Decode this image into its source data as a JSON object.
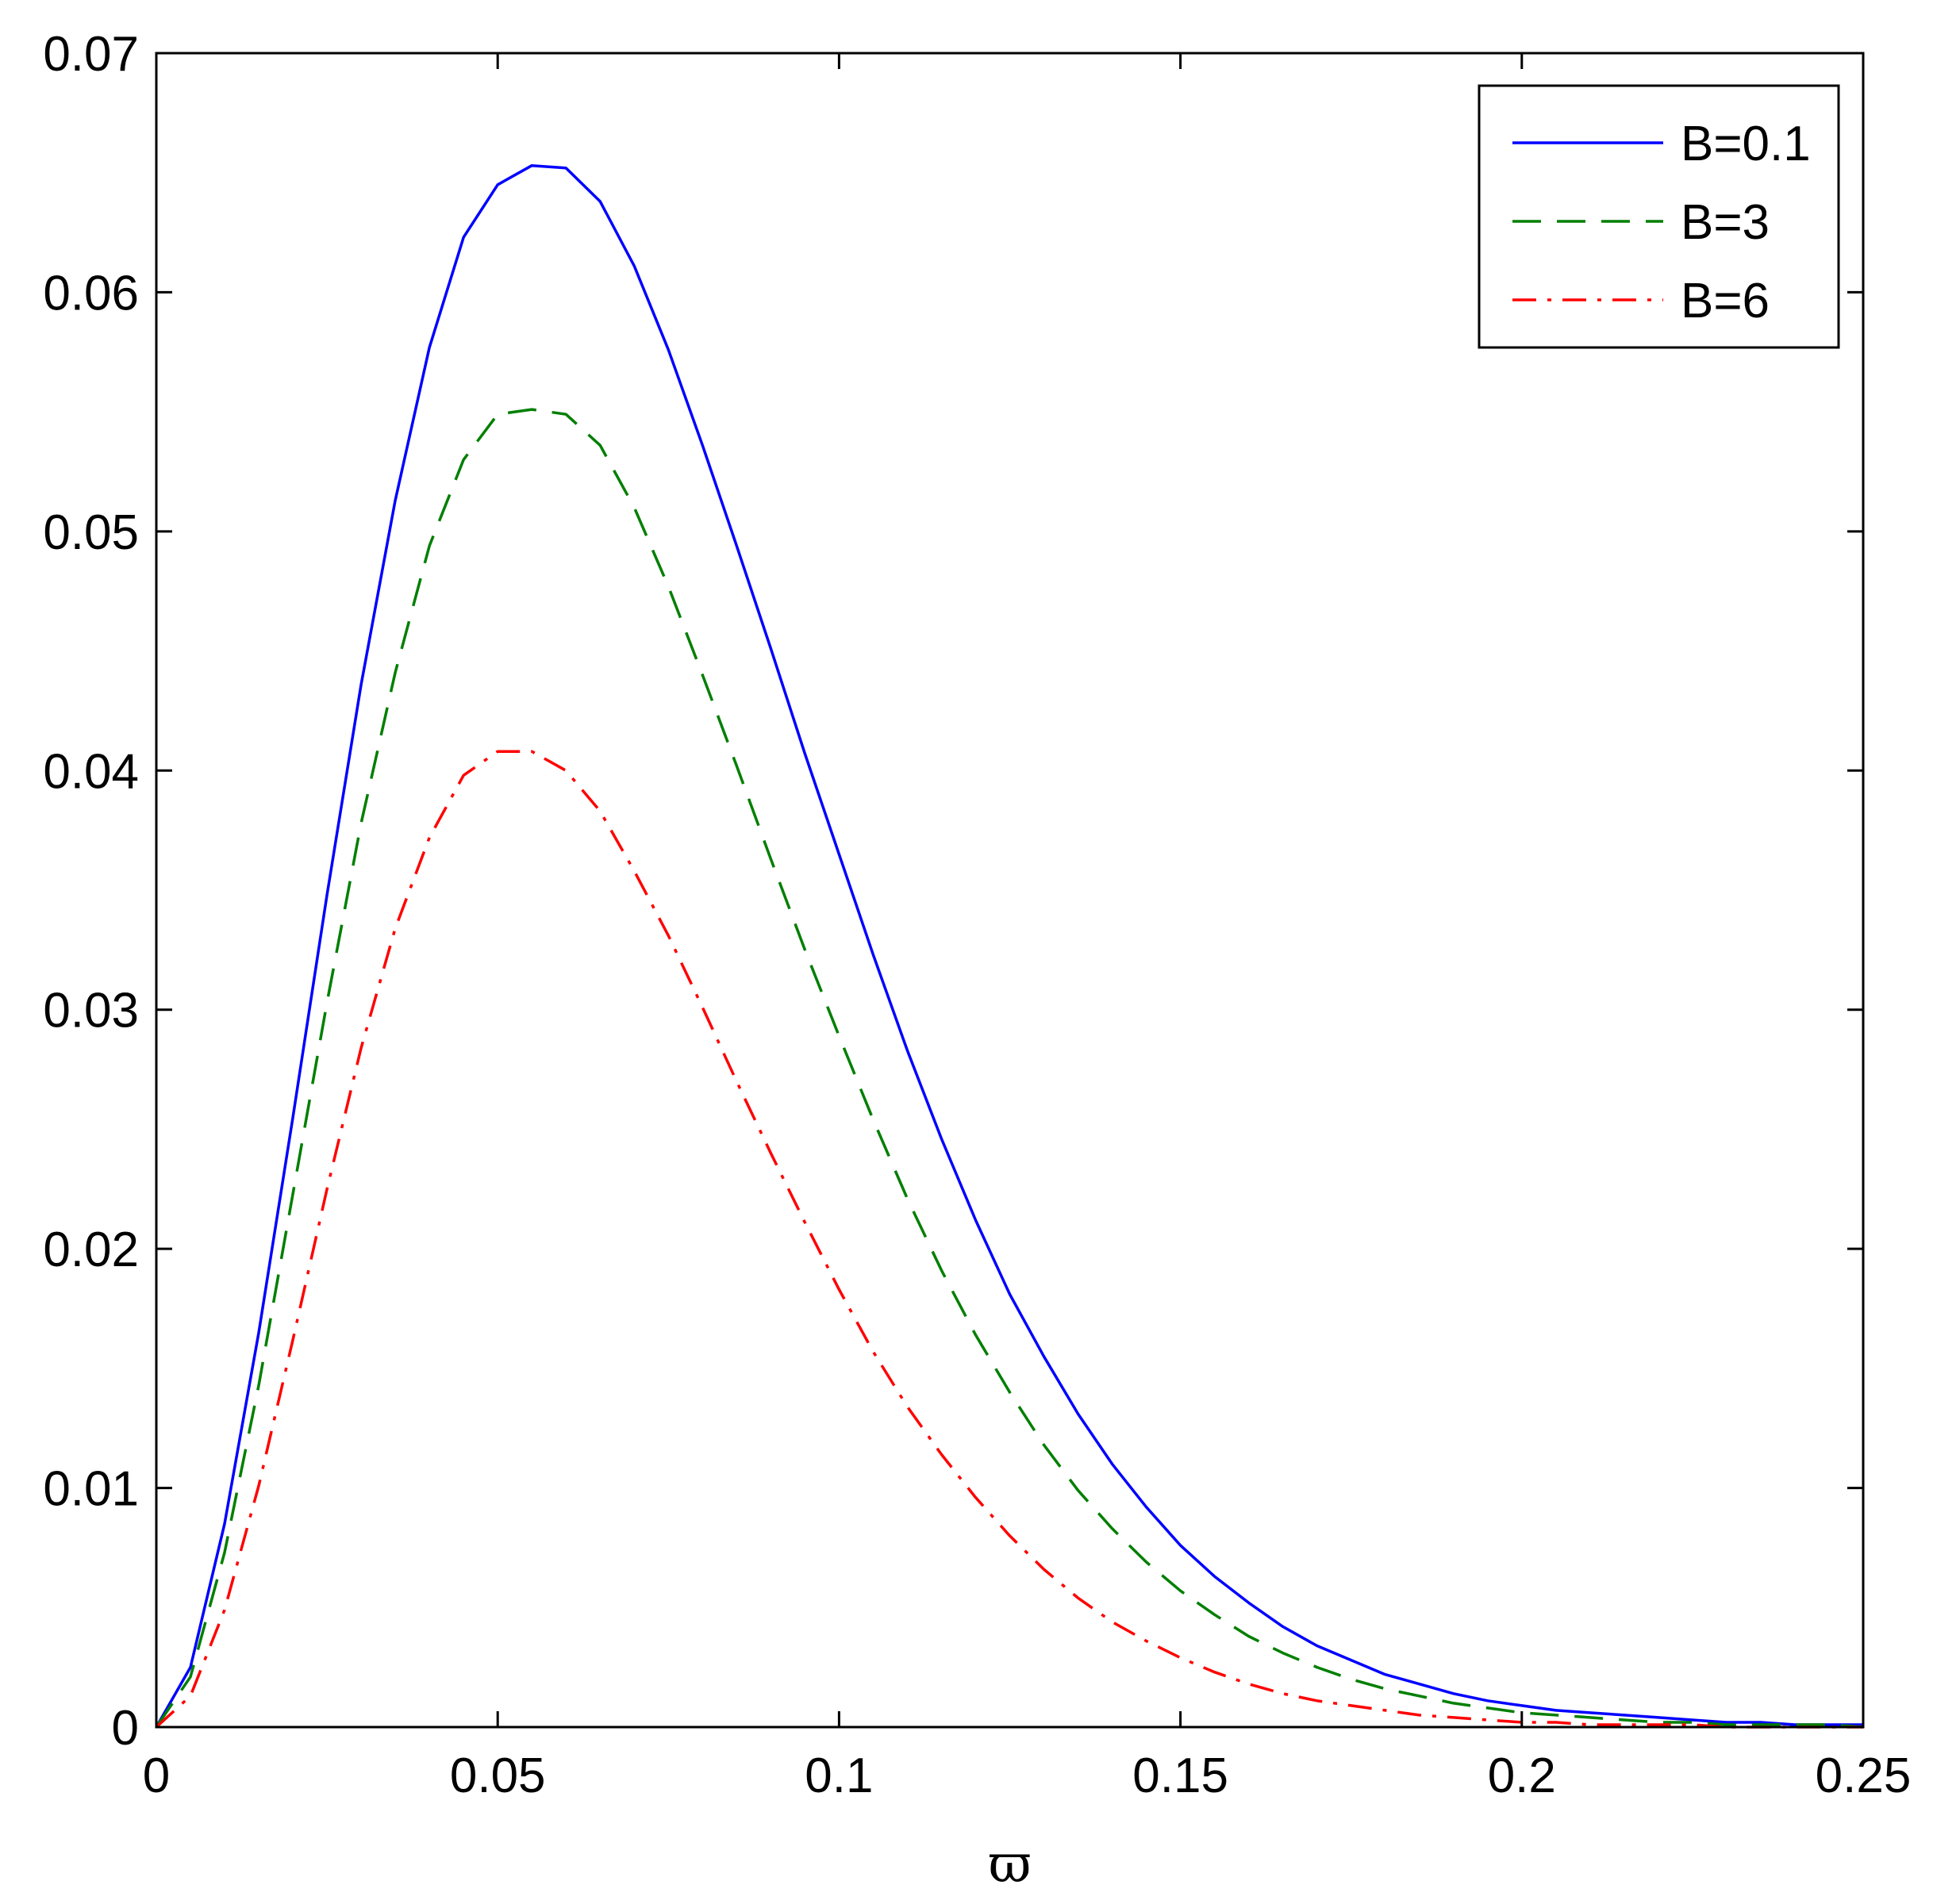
{
  "chart_data": {
    "type": "line",
    "title": "",
    "xlabel": "ϖ",
    "ylabel": "",
    "xlim": [
      0,
      0.25
    ],
    "ylim": [
      0,
      0.07
    ],
    "xticks": [
      0,
      0.05,
      0.1,
      0.15,
      0.2,
      0.25
    ],
    "xtick_labels": [
      "0",
      "0.05",
      "0.1",
      "0.15",
      "0.2",
      "0.25"
    ],
    "yticks": [
      0,
      0.01,
      0.02,
      0.03,
      0.04,
      0.05,
      0.06,
      0.07
    ],
    "ytick_labels": [
      "0",
      "0.01",
      "0.02",
      "0.03",
      "0.04",
      "0.05",
      "0.06",
      "0.07"
    ],
    "grid": false,
    "legend_position": "top-right",
    "series": [
      {
        "name": "B=0.1",
        "color": "#0000ff",
        "style": "solid",
        "x": [
          0,
          0.005,
          0.01,
          0.015,
          0.02,
          0.025,
          0.03,
          0.035,
          0.04,
          0.045,
          0.05,
          0.055,
          0.06,
          0.065,
          0.07,
          0.075,
          0.08,
          0.085,
          0.09,
          0.095,
          0.1,
          0.105,
          0.11,
          0.115,
          0.12,
          0.125,
          0.13,
          0.135,
          0.14,
          0.145,
          0.15,
          0.155,
          0.16,
          0.165,
          0.17,
          0.175,
          0.18,
          0.185,
          0.19,
          0.195,
          0.2,
          0.205,
          0.21,
          0.215,
          0.22,
          0.225,
          0.23,
          0.235,
          0.24,
          0.245,
          0.25
        ],
        "y": [
          0,
          0.0025,
          0.0085,
          0.0165,
          0.0255,
          0.0348,
          0.0436,
          0.0513,
          0.0577,
          0.0623,
          0.0645,
          0.0653,
          0.0652,
          0.0638,
          0.0611,
          0.0576,
          0.0536,
          0.0494,
          0.0451,
          0.0407,
          0.0365,
          0.0323,
          0.0283,
          0.0246,
          0.0212,
          0.0181,
          0.0155,
          0.0131,
          0.011,
          0.0092,
          0.0076,
          0.0063,
          0.0052,
          0.0042,
          0.0034,
          0.0028,
          0.0022,
          0.0018,
          0.0014,
          0.0011,
          0.0009,
          0.0007,
          0.0006,
          0.0005,
          0.0004,
          0.0003,
          0.0002,
          0.0002,
          0.0001,
          0.0001,
          0.0001
        ]
      },
      {
        "name": "B=3",
        "color": "#007f00",
        "style": "dashed",
        "x": [
          0,
          0.005,
          0.01,
          0.015,
          0.02,
          0.025,
          0.03,
          0.035,
          0.04,
          0.045,
          0.05,
          0.055,
          0.06,
          0.065,
          0.07,
          0.075,
          0.08,
          0.085,
          0.09,
          0.095,
          0.1,
          0.105,
          0.11,
          0.115,
          0.12,
          0.125,
          0.13,
          0.135,
          0.14,
          0.145,
          0.15,
          0.155,
          0.16,
          0.165,
          0.17,
          0.175,
          0.18,
          0.185,
          0.19,
          0.195,
          0.2,
          0.205,
          0.21,
          0.215,
          0.22,
          0.225,
          0.23,
          0.235,
          0.24,
          0.245,
          0.25
        ],
        "y": [
          0,
          0.0021,
          0.0073,
          0.0143,
          0.0223,
          0.0303,
          0.0378,
          0.0441,
          0.0494,
          0.053,
          0.0549,
          0.0551,
          0.0549,
          0.0536,
          0.051,
          0.0477,
          0.044,
          0.0402,
          0.0363,
          0.0325,
          0.0289,
          0.0254,
          0.0221,
          0.0191,
          0.0164,
          0.014,
          0.0118,
          0.0099,
          0.0083,
          0.0069,
          0.0057,
          0.0047,
          0.0038,
          0.0031,
          0.0025,
          0.002,
          0.0016,
          0.0013,
          0.001,
          0.0008,
          0.0006,
          0.0005,
          0.0004,
          0.0003,
          0.0002,
          0.0002,
          0.0001,
          0.0001,
          0.0001,
          0.0001,
          0
        ]
      },
      {
        "name": "B=6",
        "color": "#ff0000",
        "style": "dashdot",
        "x": [
          0,
          0.005,
          0.01,
          0.015,
          0.02,
          0.025,
          0.03,
          0.035,
          0.04,
          0.045,
          0.05,
          0.055,
          0.06,
          0.065,
          0.07,
          0.075,
          0.08,
          0.085,
          0.09,
          0.095,
          0.1,
          0.105,
          0.11,
          0.115,
          0.12,
          0.125,
          0.13,
          0.135,
          0.14,
          0.145,
          0.15,
          0.155,
          0.16,
          0.165,
          0.17,
          0.175,
          0.18,
          0.185,
          0.19,
          0.195,
          0.2,
          0.205,
          0.21,
          0.215,
          0.22,
          0.225,
          0.23,
          0.235,
          0.24,
          0.245,
          0.25
        ],
        "y": [
          0,
          0.0013,
          0.0049,
          0.0101,
          0.0162,
          0.0225,
          0.0284,
          0.0334,
          0.0372,
          0.0398,
          0.0408,
          0.0408,
          0.04,
          0.0383,
          0.0358,
          0.0331,
          0.0301,
          0.027,
          0.024,
          0.0211,
          0.0183,
          0.0157,
          0.0134,
          0.0114,
          0.0096,
          0.008,
          0.0066,
          0.0054,
          0.0044,
          0.0036,
          0.0029,
          0.0023,
          0.0018,
          0.0014,
          0.0011,
          0.0009,
          0.0007,
          0.0005,
          0.0004,
          0.0003,
          0.0002,
          0.0002,
          0.0001,
          0.0001,
          0.0001,
          0.0001,
          0,
          0,
          0,
          0,
          0
        ]
      }
    ]
  }
}
